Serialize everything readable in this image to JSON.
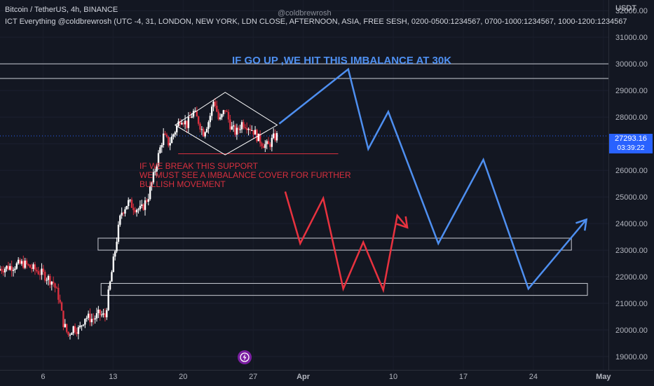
{
  "header": {
    "symbol_line": "Bitcoin / TetherUS, 4h, BINANCE",
    "indicator_line": "ICT Everything @coldbrewrosh (UTC -4, 31, LONDON, NEW YORK, LDN CLOSE, AFTERNOON, ASIA, FREE SESH, 0200-0500:1234567, 0700-1000:1234567, 1000-1200:1234567",
    "watermark": "@coldbrewrosh"
  },
  "price_axis": {
    "currency": "USDT",
    "current_price": "27293.16",
    "countdown": "03:39:22"
  },
  "annotations": {
    "upside": "IF GO UP ,WE HIT THIS IMBALANCE AT 30K",
    "downside_line1": "IF WE BREAK THIS SUPPORT",
    "downside_line2": "WE MUST SEE A IMBALANCE COVER FOR FURTHER",
    "downside_line3": "BULLISH MOVEMENT"
  },
  "colors": {
    "background": "#131722",
    "up_candle": "#ffffff",
    "down_candle": "#d9303f",
    "bullish_path": "#4e8ff0",
    "bearish_path": "#e8323f",
    "price_badge": "#2962ff",
    "axis_text": "#b2b5be"
  },
  "chart_data": {
    "type": "candlestick",
    "symbol": "BTCUSDT",
    "timeframe": "4h",
    "exchange": "BINANCE",
    "y_axis": {
      "ticks": [
        19000,
        20000,
        21000,
        22000,
        23000,
        24000,
        25000,
        26000,
        27000,
        28000,
        29000,
        30000,
        31000,
        32000
      ],
      "tick_labels": [
        "19000.00",
        "20000.00",
        "21000.00",
        "22000.00",
        "23000.00",
        "24000.00",
        "25000.00",
        "26000.00",
        "27000.00",
        "28000.00",
        "29000.00",
        "30000.00",
        "31000.00",
        "32000.00"
      ],
      "ylim": [
        18500,
        32400
      ]
    },
    "x_axis": {
      "tick_labels": [
        "6",
        "13",
        "20",
        "27",
        "Apr",
        "10",
        "17",
        "24",
        "May"
      ],
      "tick_days": [
        6,
        13,
        20,
        27,
        32,
        41,
        48,
        55,
        62
      ],
      "bold_labels": [
        "Apr",
        "May"
      ],
      "xlim_days": [
        1.7,
        62.5
      ]
    },
    "price_segments": [
      {
        "name": "early-range",
        "points": [
          [
            1.7,
            22300
          ],
          [
            3,
            22400
          ],
          [
            4,
            22500
          ],
          [
            5,
            22300
          ],
          [
            6,
            22100
          ],
          [
            7,
            21800
          ]
        ]
      },
      {
        "name": "drop",
        "points": [
          [
            7,
            21800
          ],
          [
            7.6,
            21200
          ],
          [
            8,
            20300
          ],
          [
            8.5,
            19800
          ],
          [
            9,
            20100
          ],
          [
            9.6,
            20000
          ],
          [
            10.2,
            20500
          ],
          [
            11,
            20400
          ],
          [
            11.6,
            20600
          ],
          [
            12.2,
            20500
          ]
        ]
      },
      {
        "name": "rally",
        "points": [
          [
            12.2,
            20500
          ],
          [
            12.6,
            21500
          ],
          [
            13,
            22500
          ],
          [
            13.4,
            23500
          ],
          [
            13.8,
            24400
          ],
          [
            14.5,
            24800
          ],
          [
            15.2,
            24600
          ],
          [
            15.8,
            24500
          ],
          [
            16.5,
            25000
          ],
          [
            17,
            25700
          ],
          [
            17.5,
            26500
          ],
          [
            18,
            27300
          ],
          [
            18.6,
            27000
          ]
        ]
      },
      {
        "name": "consolidation",
        "points": [
          [
            18.6,
            27000
          ],
          [
            19.2,
            27500
          ],
          [
            19.8,
            28000
          ],
          [
            20.4,
            27700
          ],
          [
            21,
            28200
          ],
          [
            21.6,
            27800
          ],
          [
            22,
            27400
          ],
          [
            22.6,
            27900
          ],
          [
            23.1,
            28700
          ],
          [
            23.6,
            27800
          ],
          [
            24.2,
            28300
          ],
          [
            24.8,
            27600
          ],
          [
            25.3,
            27400
          ],
          [
            25.9,
            27800
          ],
          [
            26.4,
            27700
          ],
          [
            27,
            27500
          ],
          [
            27.5,
            27200
          ],
          [
            28,
            27000
          ],
          [
            28.5,
            26900
          ],
          [
            29,
            27200
          ],
          [
            29.4,
            27293
          ]
        ]
      }
    ],
    "current_price": 27293.16,
    "zones": [
      {
        "name": "upper-imbalance",
        "low": 29450,
        "high": 30000
      },
      {
        "name": "middle-imbalance",
        "low": 23000,
        "high": 23450,
        "from_day": 11.5,
        "to_day": 58.8
      },
      {
        "name": "lower-imbalance",
        "low": 21300,
        "high": 21750,
        "from_day": 11.8,
        "to_day": 60.4
      }
    ],
    "support_line": {
      "price": 26620,
      "from_day": 19.5,
      "to_day": 35.5
    },
    "triangle_pattern": {
      "start_day": 19.2,
      "apex_left_day": 24.2,
      "end_day": 29.4,
      "top": 28930,
      "bottom": 26580,
      "mid": 27700
    },
    "bullish_projection": [
      [
        29.6,
        27750
      ],
      [
        36.5,
        29800
      ],
      [
        38.5,
        26800
      ],
      [
        40.5,
        28200
      ],
      [
        45.5,
        23250
      ],
      [
        50,
        26400
      ],
      [
        54.5,
        21550
      ],
      [
        60.3,
        24150
      ]
    ],
    "bearish_projection": [
      [
        30.2,
        25200
      ],
      [
        31.7,
        23250
      ],
      [
        34,
        24950
      ],
      [
        36,
        21550
      ],
      [
        38,
        23300
      ],
      [
        40,
        21500
      ],
      [
        41.4,
        24300
      ],
      [
        42.4,
        23850
      ]
    ]
  }
}
